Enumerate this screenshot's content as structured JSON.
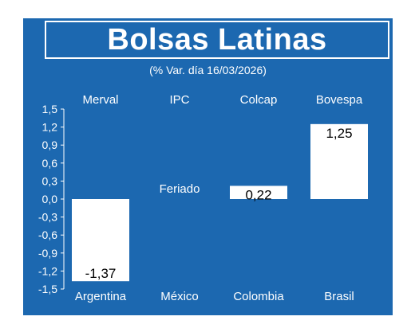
{
  "title": "Bolsas Latinas",
  "subtitle": "(% Var. día 16/03/2026)",
  "colors": {
    "background": "#1c68b0",
    "bar": "#ffffff",
    "text": "#ffffff",
    "value_text": "#000000"
  },
  "chart_data": {
    "type": "bar",
    "title": "Bolsas Latinas",
    "subtitle": "(% Var. día 16/03/2026)",
    "categories": [
      "Merval",
      "IPC",
      "Colcap",
      "Bovespa"
    ],
    "countries": [
      "Argentina",
      "México",
      "Colombia",
      "Brasil"
    ],
    "values": [
      -1.37,
      null,
      0.22,
      1.25
    ],
    "value_labels": [
      "-1,37",
      "",
      "0,22",
      "1,25"
    ],
    "notes": [
      "",
      "Feriado",
      "",
      ""
    ],
    "ylim": [
      -1.5,
      1.5
    ],
    "yticks": [
      1.5,
      1.2,
      0.9,
      0.6,
      0.3,
      0.0,
      -0.3,
      -0.6,
      -0.9,
      -1.2,
      -1.5
    ],
    "ytick_labels": [
      "1,5",
      "1,2",
      "0,9",
      "0,6",
      "0,3",
      "0,0",
      "-0,3",
      "-0,6",
      "-0,9",
      "-1,2",
      "-1,5"
    ],
    "grid": false
  }
}
